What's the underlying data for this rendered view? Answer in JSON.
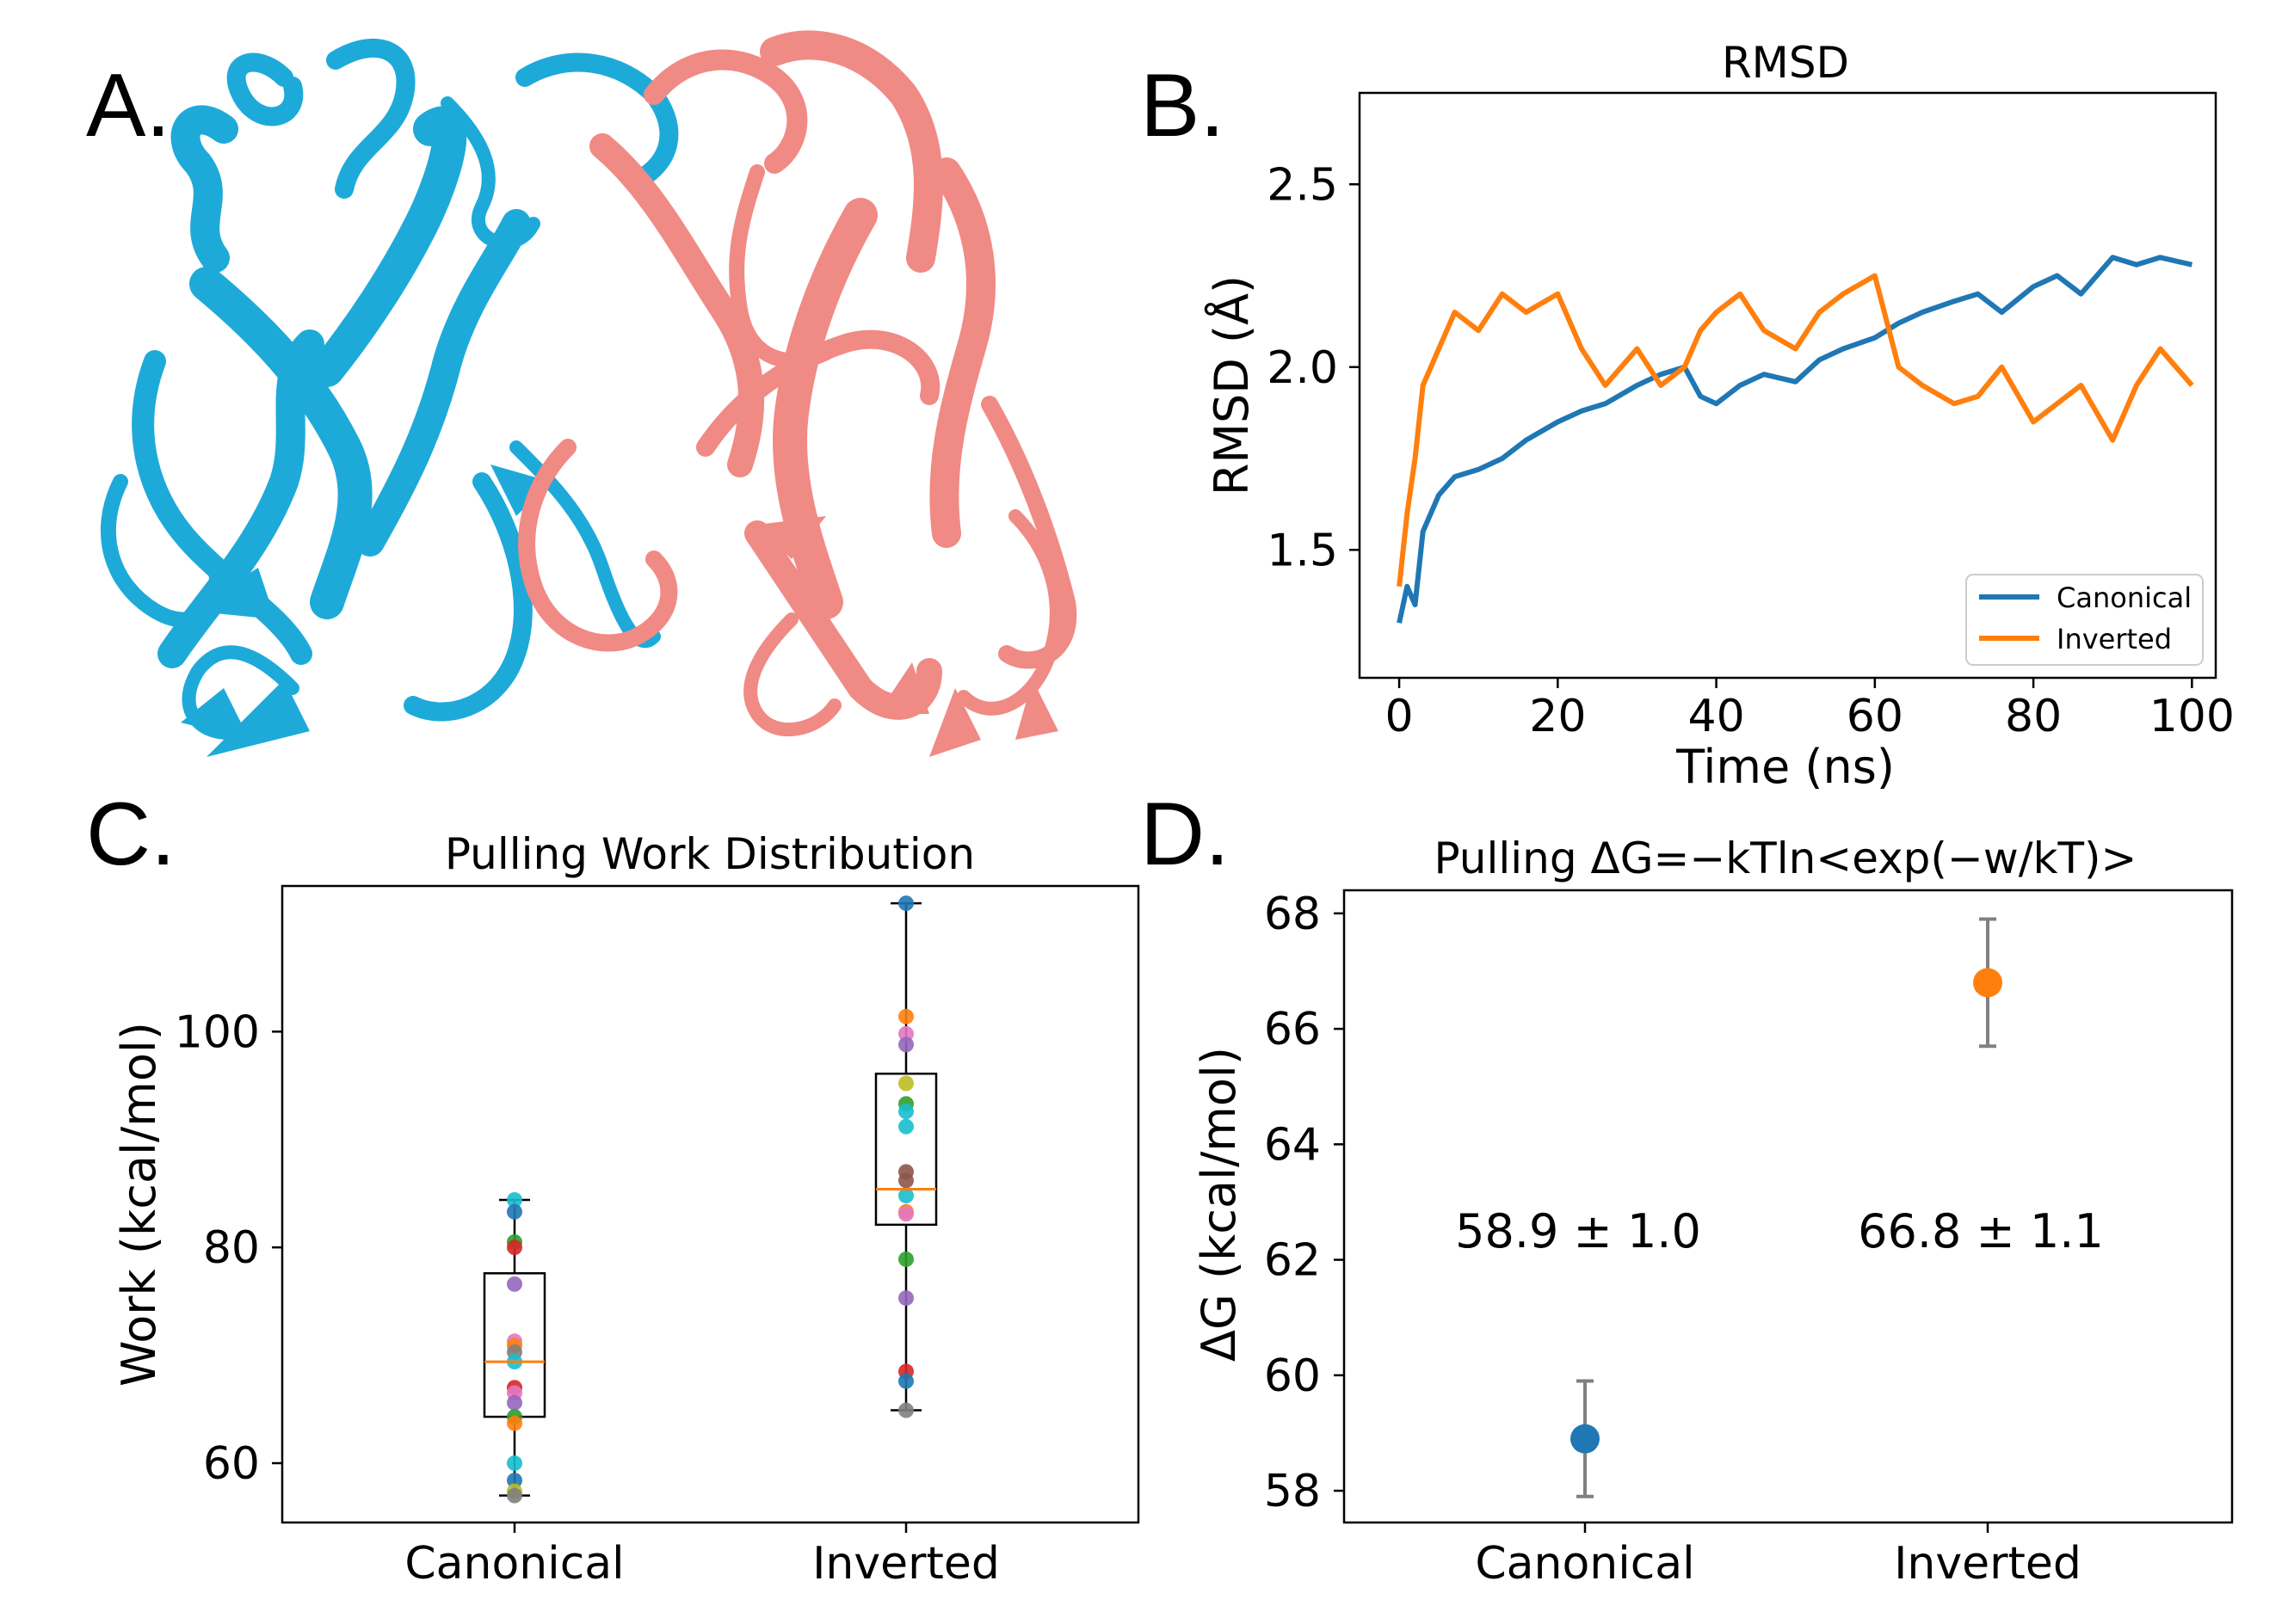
{
  "panels": {
    "A": {
      "label": "A."
    },
    "B": {
      "label": "B."
    },
    "C": {
      "label": "C."
    },
    "D": {
      "label": "D."
    }
  },
  "colors": {
    "canonical": "#1f77b4",
    "inverted": "#ff7f0e",
    "protein_chain_1": "#1eaad9",
    "protein_chain_2": "#f08a85",
    "axis": "#000000",
    "median": "#ff7f0e"
  },
  "chart_data": [
    {
      "id": "B",
      "type": "line",
      "title": "RMSD",
      "xlabel": "Time (ns)",
      "ylabel": "RMSD (Å)",
      "xlim": [
        -5,
        103
      ],
      "ylim": [
        1.15,
        2.75
      ],
      "xticks": [
        0,
        20,
        40,
        60,
        80,
        100
      ],
      "yticks": [
        1.5,
        2.0,
        2.5
      ],
      "xtick_labels": [
        "0",
        "20",
        "40",
        "60",
        "80",
        "100"
      ],
      "ytick_labels": [
        "1.5",
        "2.0",
        "2.5"
      ],
      "legend": {
        "position": "lower-right",
        "entries": [
          "Canonical",
          "Inverted"
        ]
      },
      "series": [
        {
          "name": "Canonical",
          "color": "#1f77b4",
          "x": [
            0,
            1,
            2,
            3,
            5,
            7,
            10,
            13,
            16,
            20,
            23,
            26,
            30,
            33,
            36,
            38,
            40,
            43,
            46,
            50,
            53,
            56,
            60,
            63,
            66,
            70,
            73,
            76,
            80,
            83,
            86,
            90,
            93,
            96,
            100
          ],
          "y": [
            1.3,
            1.4,
            1.35,
            1.55,
            1.65,
            1.7,
            1.72,
            1.75,
            1.8,
            1.85,
            1.88,
            1.9,
            1.95,
            1.98,
            2.0,
            1.92,
            1.9,
            1.95,
            1.98,
            1.96,
            2.02,
            2.05,
            2.08,
            2.12,
            2.15,
            2.18,
            2.2,
            2.15,
            2.22,
            2.25,
            2.2,
            2.3,
            2.28,
            2.3,
            2.28
          ]
        },
        {
          "name": "Inverted",
          "color": "#ff7f0e",
          "x": [
            0,
            1,
            2,
            3,
            5,
            7,
            10,
            13,
            16,
            20,
            23,
            26,
            30,
            33,
            36,
            38,
            40,
            43,
            46,
            50,
            53,
            56,
            60,
            63,
            66,
            70,
            73,
            76,
            80,
            83,
            86,
            90,
            93,
            96,
            100
          ],
          "y": [
            1.4,
            1.6,
            1.75,
            1.95,
            2.05,
            2.15,
            2.1,
            2.2,
            2.15,
            2.2,
            2.05,
            1.95,
            2.05,
            1.95,
            2.0,
            2.1,
            2.15,
            2.2,
            2.1,
            2.05,
            2.15,
            2.2,
            2.25,
            2.0,
            1.95,
            1.9,
            1.92,
            2.0,
            1.85,
            1.9,
            1.95,
            1.8,
            1.95,
            2.05,
            1.95
          ]
        }
      ]
    },
    {
      "id": "C",
      "type": "box",
      "title": "Pulling Work Distribution",
      "xlabel": "",
      "ylabel": "Work (kcal/mol)",
      "ylim": [
        54.5,
        113.5
      ],
      "yticks": [
        60,
        80,
        100
      ],
      "ytick_labels": [
        "60",
        "80",
        "100"
      ],
      "categories": [
        "Canonical",
        "Inverted"
      ],
      "boxes": [
        {
          "name": "Canonical",
          "min": 57.0,
          "q1": 64.3,
          "median": 69.4,
          "q3": 77.6,
          "max": 84.4,
          "points": [
            84.4,
            83.3,
            80.5,
            80.0,
            76.6,
            71.3,
            70.9,
            70.3,
            69.4,
            67.0,
            66.5,
            65.6,
            64.3,
            63.7,
            60.0,
            58.4,
            57.4,
            57.0
          ],
          "point_colors": [
            "#17becf",
            "#1f77b4",
            "#2ca02c",
            "#d62728",
            "#9467bd",
            "#e377c2",
            "#ff7f0e",
            "#7f7f7f",
            "#17becf",
            "#d62728",
            "#e377c2",
            "#9467bd",
            "#2ca02c",
            "#ff7f0e",
            "#17becf",
            "#1f77b4",
            "#bcbd22",
            "#7f7f7f"
          ]
        },
        {
          "name": "Inverted",
          "min": 64.9,
          "q1": 82.1,
          "median": 85.4,
          "q3": 96.1,
          "max": 111.9,
          "points": [
            111.9,
            101.4,
            99.8,
            98.8,
            95.2,
            93.3,
            92.6,
            91.2,
            87.0,
            86.2,
            84.8,
            83.3,
            83.1,
            78.9,
            75.3,
            68.5,
            67.6,
            64.9
          ],
          "point_colors": [
            "#1f77b4",
            "#ff7f0e",
            "#e377c2",
            "#9467bd",
            "#bcbd22",
            "#2ca02c",
            "#17becf",
            "#17becf",
            "#8c564b",
            "#8c564b",
            "#17becf",
            "#ff7f0e",
            "#e377c2",
            "#2ca02c",
            "#9467bd",
            "#d62728",
            "#1f77b4",
            "#7f7f7f"
          ]
        }
      ]
    },
    {
      "id": "D",
      "type": "scatter",
      "title": "Pulling ΔG=−kTln<exp(−w/kT)>",
      "xlabel": "",
      "ylabel": "ΔG (kcal/mol)",
      "ylim": [
        57.45,
        68.4
      ],
      "yticks": [
        58,
        60,
        62,
        64,
        66,
        68
      ],
      "ytick_labels": [
        "58",
        "60",
        "62",
        "64",
        "66",
        "68"
      ],
      "categories": [
        "Canonical",
        "Inverted"
      ],
      "points": [
        {
          "name": "Canonical",
          "value": 58.9,
          "error": 1.0,
          "color": "#1f77b4",
          "annotation": "58.9 ± 1.0"
        },
        {
          "name": "Inverted",
          "value": 66.8,
          "error": 1.1,
          "color": "#ff7f0e",
          "annotation": "66.8 ± 1.1"
        }
      ]
    }
  ]
}
